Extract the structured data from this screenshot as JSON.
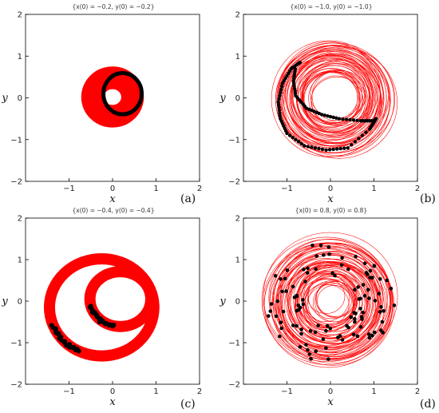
{
  "figure": {
    "panels": [
      {
        "label": "(a)",
        "title": "{x(0) = −0.2, y(0) = −0.2}"
      },
      {
        "label": "(b)",
        "title": "{x(0) = −1.0, y(0) = −1.0}"
      },
      {
        "label": "(c)",
        "title": "{x(0) = −0.4, y(0) = −0.4}"
      },
      {
        "label": "(d)",
        "title": "{x(0) = 0.8, y(0) = 0.8}"
      }
    ]
  },
  "chart_data": [
    {
      "type": "scatter",
      "title": "{x(0) = −0.2, y(0) = −0.2}",
      "xlabel": "x",
      "ylabel": "y",
      "xlim": [
        -2,
        2
      ],
      "ylim": [
        -2,
        2
      ],
      "xticks": [
        "−1",
        "0",
        "1",
        "2"
      ],
      "yticks": [
        "−2",
        "−1",
        "0",
        "1",
        "2"
      ],
      "grid": false,
      "attractor": {
        "shape": "annulus",
        "center": [
          0.0,
          0.02
        ],
        "inner_radius": 0.2,
        "outer_radius": 0.72,
        "color": "#ff0000"
      },
      "points": {
        "shape": "ring",
        "center": [
          0.28,
          0.1
        ],
        "radius_x": 0.55,
        "radius_y": 0.58,
        "color": "#000000"
      }
    },
    {
      "type": "scatter",
      "title": "{x(0) = −1.0, y(0) = −1.0}",
      "xlabel": "x",
      "ylabel": "y",
      "xlim": [
        -2,
        2
      ],
      "ylim": [
        -2,
        2
      ],
      "xticks": [
        "−1",
        "0",
        "1",
        "2"
      ],
      "yticks": [
        "−2",
        "−1",
        "0",
        "1",
        "2"
      ],
      "grid": false,
      "attractor": {
        "shape": "annulus",
        "center": [
          0.08,
          0.0
        ],
        "inner_radius": 0.55,
        "outer_radius": 1.35,
        "color": "#ff0000"
      },
      "points": {
        "shape": "polyline",
        "color": "#000000",
        "path": [
          [
            -0.7,
            0.85
          ],
          [
            -0.9,
            0.7
          ],
          [
            -1.1,
            0.35
          ],
          [
            -1.2,
            -0.1
          ],
          [
            -1.15,
            -0.5
          ],
          [
            -1.0,
            -0.85
          ],
          [
            -0.6,
            -1.15
          ],
          [
            -0.1,
            -1.25
          ],
          [
            0.4,
            -1.2
          ],
          [
            0.9,
            -0.75
          ],
          [
            1.05,
            -0.5
          ],
          [
            1.0,
            -0.55
          ],
          [
            0.7,
            -0.55
          ],
          [
            0.2,
            -0.5
          ],
          [
            -0.2,
            -0.4
          ],
          [
            -0.55,
            -0.25
          ],
          [
            -0.8,
            0.05
          ],
          [
            -0.85,
            0.4
          ],
          [
            -0.8,
            0.75
          ]
        ]
      }
    },
    {
      "type": "scatter",
      "title": "{x(0) = −0.4, y(0) = −0.4}",
      "xlabel": "x",
      "ylabel": "y",
      "xlim": [
        -2,
        2
      ],
      "ylim": [
        -2,
        2
      ],
      "xticks": [
        "−1",
        "0",
        "1",
        "2"
      ],
      "yticks": [
        "−2",
        "−1",
        "0",
        "1",
        "2"
      ],
      "grid": false,
      "attractor": {
        "shape": "double-loop",
        "color": "#ff0000",
        "loops": [
          {
            "center": [
              -0.25,
              -0.15
            ],
            "radius_x": 1.2,
            "radius_y": 1.17
          },
          {
            "center": [
              0.18,
              0.05
            ],
            "radius_x": 0.7,
            "radius_y": 0.66
          }
        ]
      },
      "points": {
        "shape": "arcs",
        "color": "#000000",
        "arcs": [
          {
            "center": [
              -0.25,
              -0.15
            ],
            "radius_x": 1.2,
            "radius_y": 1.17,
            "from_deg": 200,
            "to_deg": 245
          },
          {
            "center": [
              0.18,
              0.05
            ],
            "radius_x": 0.7,
            "radius_y": 0.66,
            "from_deg": 195,
            "to_deg": 260
          }
        ]
      }
    },
    {
      "type": "scatter",
      "title": "{x(0) = 0.8, y(0) = 0.8}",
      "xlabel": "x",
      "ylabel": "y",
      "xlim": [
        -2,
        2
      ],
      "ylim": [
        -2,
        2
      ],
      "xticks": [
        "−1",
        "0",
        "1",
        "2"
      ],
      "yticks": [
        "−2",
        "−1",
        "0",
        "1",
        "2"
      ],
      "grid": false,
      "attractor": {
        "shape": "annulus",
        "center": [
          0.0,
          0.0
        ],
        "inner_radius": 0.4,
        "outer_radius": 1.5,
        "color": "#ff0000"
      },
      "points": {
        "shape": "scattered",
        "color": "#000000",
        "count": 110,
        "radius_range": [
          0.6,
          1.5
        ]
      }
    }
  ]
}
